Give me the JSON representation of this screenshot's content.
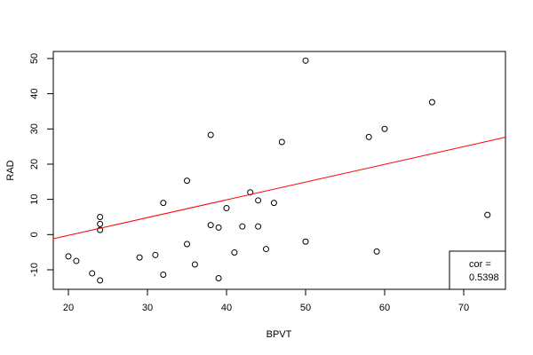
{
  "chart_data": {
    "type": "scatter",
    "x_label": "BPVT",
    "y_label": "RAD",
    "x": [
      20,
      21,
      23,
      24,
      24,
      24,
      24,
      29,
      31,
      32,
      32,
      35,
      35,
      36,
      38,
      38,
      39,
      39,
      40,
      41,
      42,
      43,
      44,
      44,
      45,
      46,
      47,
      50,
      50,
      58,
      59,
      60,
      66,
      73
    ],
    "values": [
      -6.2,
      -7.5,
      -11,
      -13,
      1.3,
      3,
      5,
      -6.5,
      -5.8,
      -11.4,
      9,
      15.3,
      -2.7,
      -8.5,
      28.3,
      2.7,
      2,
      -12.4,
      7.5,
      -5.1,
      2.3,
      12,
      9.7,
      2.3,
      -4.1,
      9,
      26.3,
      49.4,
      -2,
      27.7,
      -4.8,
      30,
      37.6,
      5.6
    ],
    "color": "black",
    "xlim": [
      18.09,
      75.28
    ],
    "xticks": [
      20,
      30,
      40,
      50,
      60,
      70
    ],
    "ylim": [
      -15.55,
      52
    ],
    "yticks": [
      -10,
      0,
      10,
      20,
      30,
      40,
      50
    ],
    "trend_line": {
      "color": "red",
      "intercept": -10.3,
      "slope": 0.504
    },
    "legend": {
      "position": "bottom-right",
      "label": "cor =",
      "value": 0.5398
    }
  }
}
